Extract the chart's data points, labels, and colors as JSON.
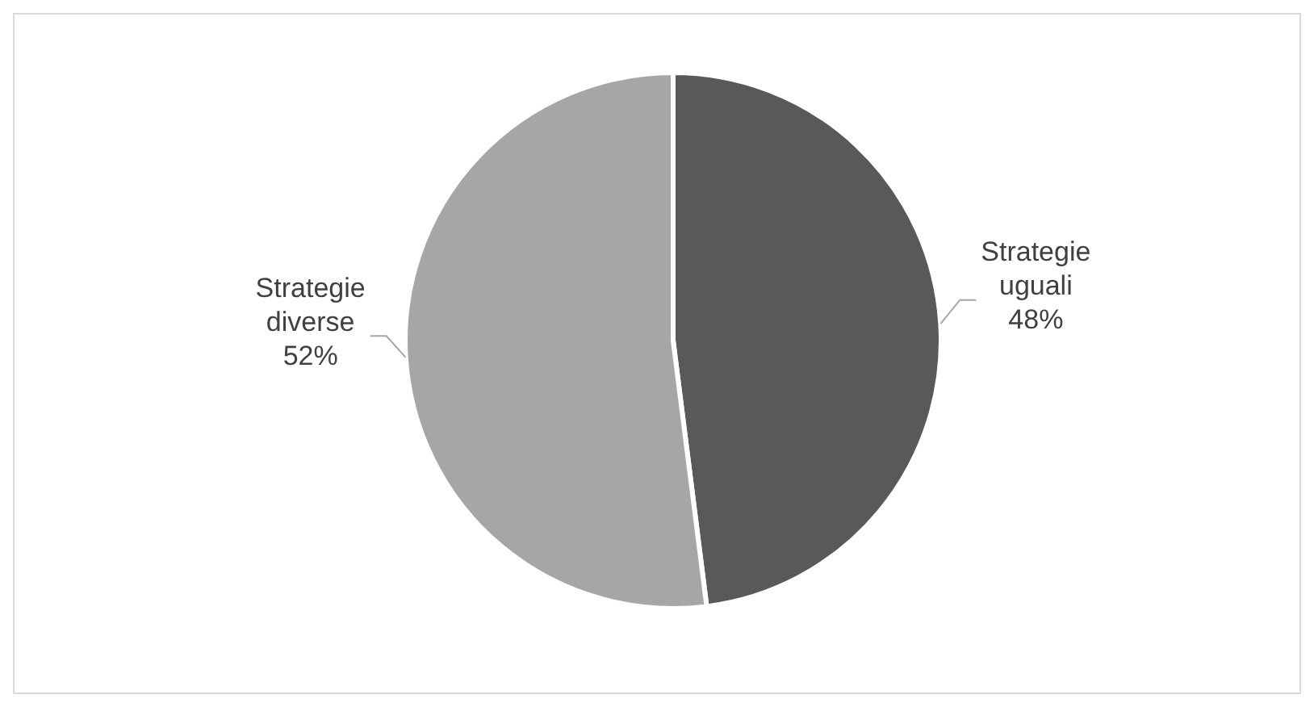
{
  "chart_data": {
    "type": "pie",
    "categories": [
      "Strategie uguali",
      "Strategie diverse"
    ],
    "values": [
      48,
      52
    ],
    "colors": [
      "#595959",
      "#a6a6a6"
    ],
    "value_labels": [
      "48%",
      "52%"
    ],
    "legend": false
  }
}
